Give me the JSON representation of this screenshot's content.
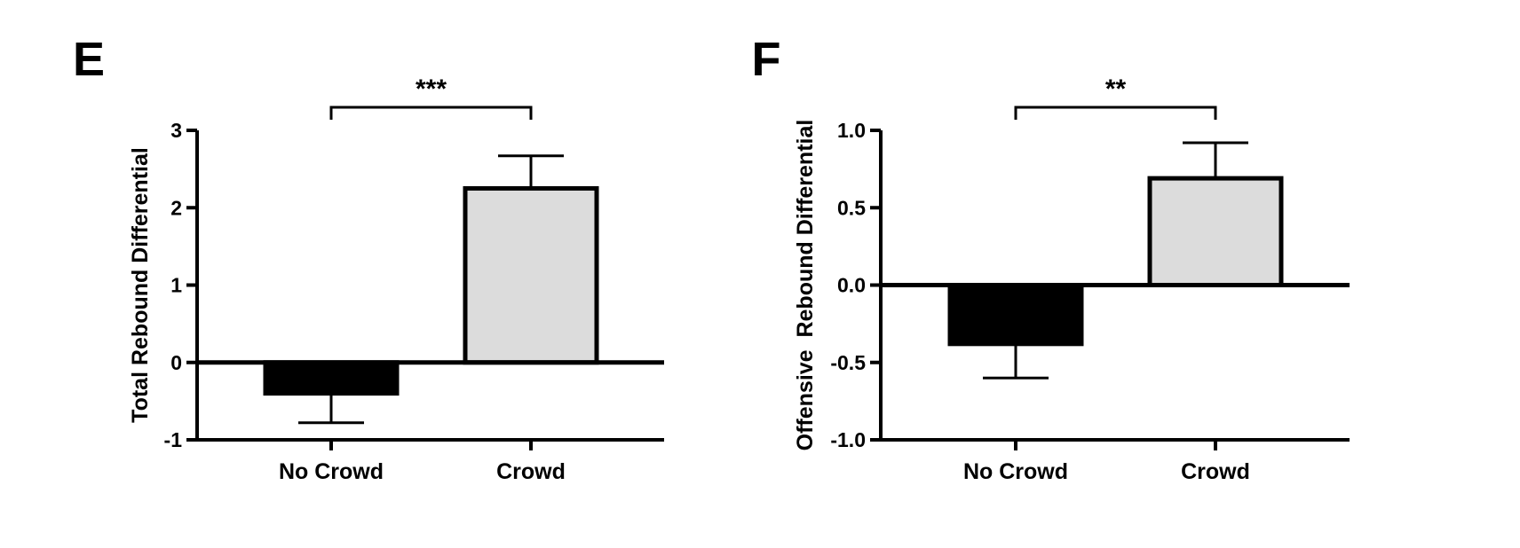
{
  "chart_data": [
    {
      "panel_label": "E",
      "type": "bar",
      "categories": [
        "No Crowd",
        "Crowd"
      ],
      "values": [
        -0.4,
        2.25
      ],
      "errors": [
        0.38,
        0.42
      ],
      "ylabel": "Total Rebound Differential",
      "ylim": [
        -1,
        3
      ],
      "yticks": [
        -1,
        0,
        1,
        2,
        3
      ],
      "ytick_labels": [
        "-1",
        "0",
        "1",
        "2",
        "3"
      ],
      "significance": "***",
      "bar_colors": [
        "#000000",
        "#dcdcdc"
      ]
    },
    {
      "panel_label": "F",
      "type": "bar",
      "categories": [
        "No Crowd",
        "Crowd"
      ],
      "values": [
        -0.38,
        0.69
      ],
      "errors": [
        0.22,
        0.23
      ],
      "ylabel": "Offensive  Rebound Differential",
      "ylim": [
        -1.0,
        1.0
      ],
      "yticks": [
        -1.0,
        -0.5,
        0.0,
        0.5,
        1.0
      ],
      "ytick_labels": [
        "-1.0",
        "-0.5",
        "0.0",
        "0.5",
        "1.0"
      ],
      "significance": "**",
      "bar_colors": [
        "#000000",
        "#dcdcdc"
      ]
    }
  ]
}
